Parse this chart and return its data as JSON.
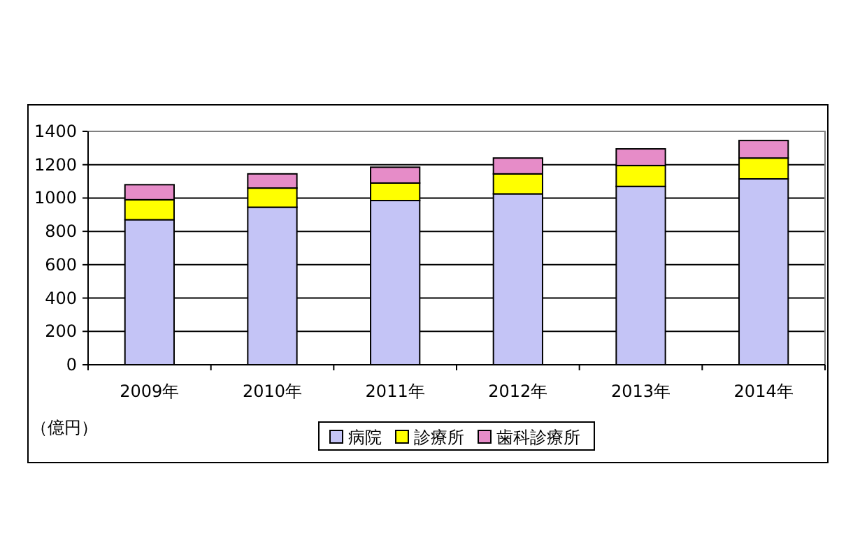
{
  "chart_data": {
    "type": "bar",
    "stacked": true,
    "ylabel": "（億円）",
    "categories": [
      "2009年",
      "2010年",
      "2011年",
      "2012年",
      "2013年",
      "2014年"
    ],
    "series": [
      {
        "name": "病院",
        "color": "#c4c4f6",
        "values": [
          870,
          945,
          985,
          1025,
          1070,
          1115
        ]
      },
      {
        "name": "診療所",
        "color": "#ffff00",
        "values": [
          120,
          115,
          105,
          120,
          125,
          125
        ]
      },
      {
        "name": "歯科診療所",
        "color": "#e68cc8",
        "values": [
          90,
          85,
          95,
          95,
          100,
          105
        ]
      }
    ],
    "ylim": [
      0,
      1400
    ],
    "yticks": [
      0,
      200,
      400,
      600,
      800,
      1000,
      1200,
      1400
    ],
    "grid": "y",
    "legend": "bottom"
  }
}
